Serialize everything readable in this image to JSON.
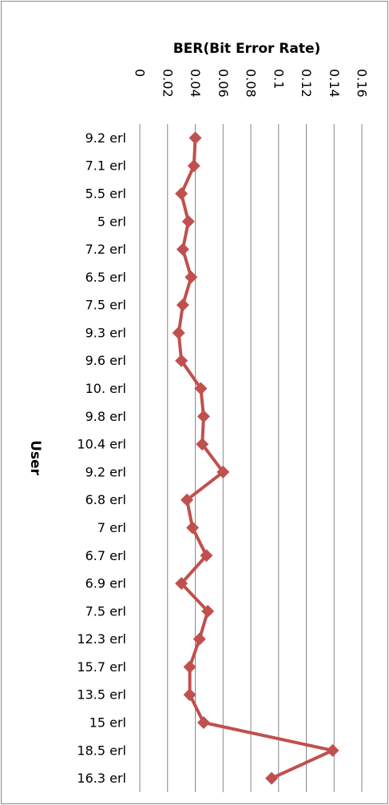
{
  "chart_data": {
    "type": "line",
    "title": "BER(Bit Error Rate)",
    "xlabel": "",
    "ylabel": "User",
    "orientation": "horizontal",
    "value_axis_position": "top",
    "value_axis_labels_rotated": true,
    "xlim": [
      0,
      0.16
    ],
    "xticks": [
      "0",
      "0.02",
      "0.04",
      "0.06",
      "0.08",
      "0.1",
      "0.12",
      "0.14",
      "0.16"
    ],
    "grid": true,
    "legend": "none",
    "categories": [
      "9.2 erl",
      "7.1 erl",
      "5.5 erl",
      "5 erl",
      "7.2 erl",
      "6.5 erl",
      "7.5 erl",
      "9.3 erl",
      "9.6 erl",
      "10. erl",
      "9.8 erl",
      "10.4 erl",
      "9.2 erl",
      "6.8 erl",
      "7 erl",
      "6.7 erl",
      "6.9 erl",
      "7.5 erl",
      "12.3 erl",
      "15.7 erl",
      "13.5 erl",
      "15 erl",
      "18.5 erl",
      "16.3 erl"
    ],
    "series": [
      {
        "color": "#c0504d",
        "marker": "diamond",
        "values": [
          0.04,
          0.039,
          0.03,
          0.035,
          0.031,
          0.037,
          0.031,
          0.028,
          0.03,
          0.044,
          0.046,
          0.045,
          0.06,
          0.034,
          0.038,
          0.048,
          0.03,
          0.049,
          0.043,
          0.036,
          0.036,
          0.046,
          0.139,
          0.095
        ]
      }
    ]
  }
}
